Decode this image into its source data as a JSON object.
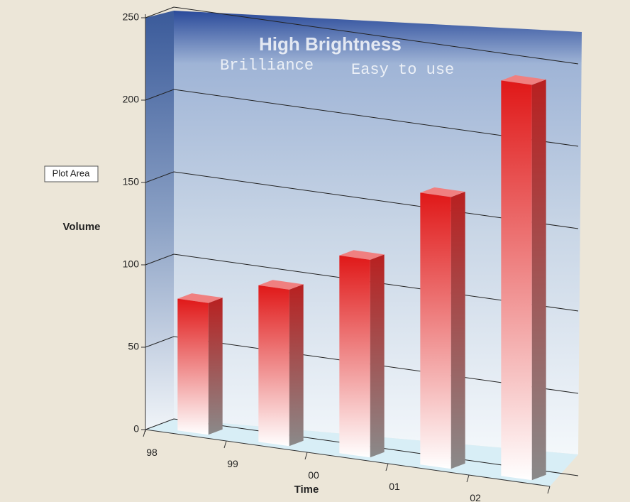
{
  "chart_data": {
    "type": "bar3d",
    "categories": [
      "98",
      "99",
      "00",
      "01",
      "02"
    ],
    "values": [
      80,
      95,
      120,
      165,
      240
    ],
    "color": "#e02020",
    "ylim": [
      0,
      250
    ],
    "yticks": [
      0,
      50,
      100,
      150,
      200,
      250
    ],
    "grid": true,
    "y_label": "Volume",
    "x_label": "Time",
    "tooltip": "Plot Area",
    "background_texts": [
      "High Brightness",
      "Brilliance",
      "Easy to use"
    ]
  }
}
